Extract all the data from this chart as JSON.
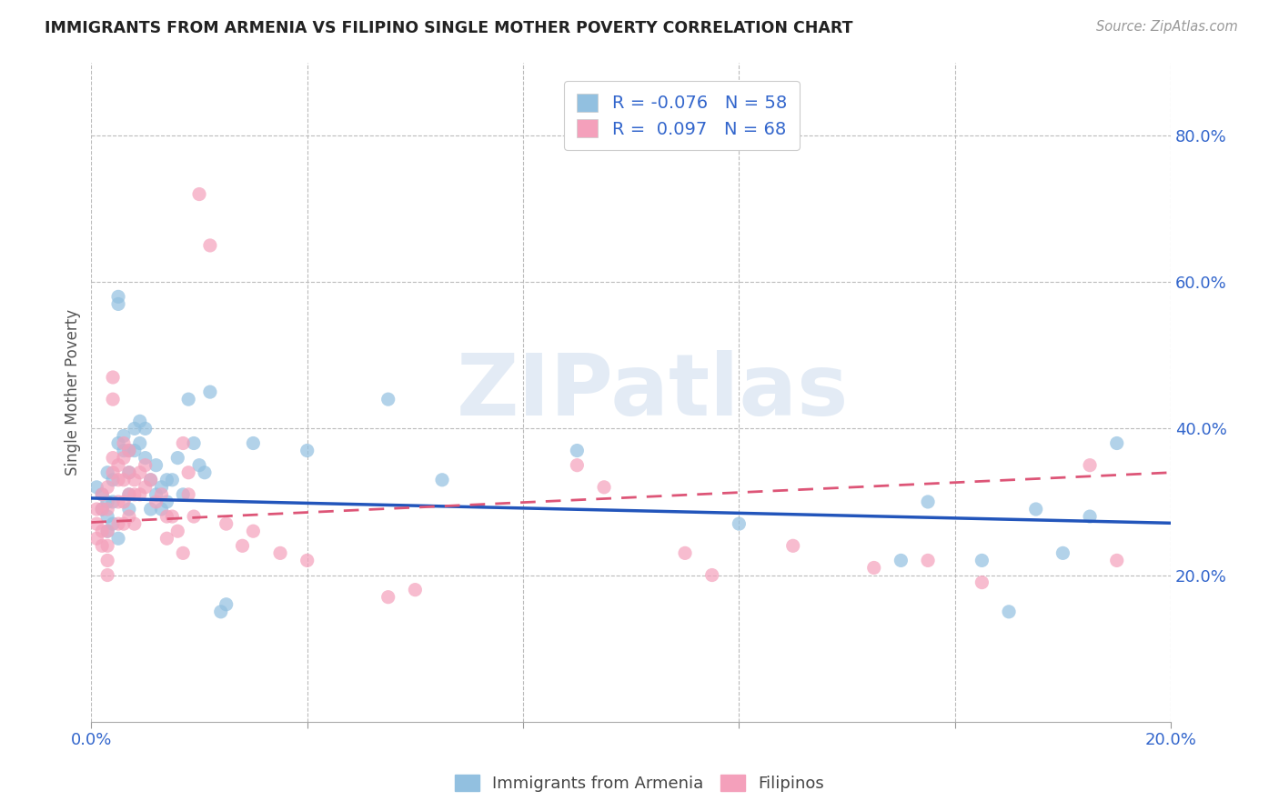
{
  "title": "IMMIGRANTS FROM ARMENIA VS FILIPINO SINGLE MOTHER POVERTY CORRELATION CHART",
  "source": "Source: ZipAtlas.com",
  "ylabel": "Single Mother Poverty",
  "xlim": [
    0.0,
    0.2
  ],
  "ylim": [
    0.0,
    0.9
  ],
  "xtick_positions": [
    0.0,
    0.04,
    0.08,
    0.12,
    0.16,
    0.2
  ],
  "xticklabels": [
    "0.0%",
    "",
    "",
    "",
    "",
    "20.0%"
  ],
  "ytick_positions": [
    0.2,
    0.4,
    0.6,
    0.8
  ],
  "ytick_labels": [
    "20.0%",
    "40.0%",
    "60.0%",
    "80.0%"
  ],
  "color_armenia": "#92C0E0",
  "color_filipino": "#F4A0BB",
  "color_armenia_line": "#2255BB",
  "color_filipino_line": "#DD5577",
  "color_text_blue": "#3366CC",
  "color_grid": "#BBBBBB",
  "background_color": "#FFFFFF",
  "watermark_text": "ZIPatlas",
  "legend_line1": "R = -0.076   N = 58",
  "legend_line2": "R =  0.097   N = 68",
  "armenia_x": [
    0.001,
    0.002,
    0.002,
    0.003,
    0.003,
    0.003,
    0.003,
    0.004,
    0.004,
    0.004,
    0.005,
    0.005,
    0.005,
    0.005,
    0.006,
    0.006,
    0.007,
    0.007,
    0.007,
    0.007,
    0.008,
    0.008,
    0.009,
    0.009,
    0.01,
    0.01,
    0.011,
    0.011,
    0.012,
    0.012,
    0.013,
    0.013,
    0.014,
    0.014,
    0.015,
    0.016,
    0.017,
    0.018,
    0.019,
    0.02,
    0.021,
    0.022,
    0.024,
    0.025,
    0.03,
    0.04,
    0.055,
    0.065,
    0.09,
    0.12,
    0.15,
    0.155,
    0.165,
    0.17,
    0.175,
    0.18,
    0.185,
    0.19
  ],
  "armenia_y": [
    0.32,
    0.29,
    0.31,
    0.34,
    0.3,
    0.28,
    0.26,
    0.33,
    0.3,
    0.27,
    0.58,
    0.57,
    0.38,
    0.25,
    0.39,
    0.37,
    0.37,
    0.34,
    0.31,
    0.29,
    0.4,
    0.37,
    0.41,
    0.38,
    0.4,
    0.36,
    0.33,
    0.29,
    0.35,
    0.31,
    0.32,
    0.29,
    0.33,
    0.3,
    0.33,
    0.36,
    0.31,
    0.44,
    0.38,
    0.35,
    0.34,
    0.45,
    0.15,
    0.16,
    0.38,
    0.37,
    0.44,
    0.33,
    0.37,
    0.27,
    0.22,
    0.3,
    0.22,
    0.15,
    0.29,
    0.23,
    0.28,
    0.38
  ],
  "filipino_x": [
    0.001,
    0.001,
    0.001,
    0.002,
    0.002,
    0.002,
    0.002,
    0.003,
    0.003,
    0.003,
    0.003,
    0.003,
    0.003,
    0.004,
    0.004,
    0.004,
    0.004,
    0.005,
    0.005,
    0.005,
    0.005,
    0.006,
    0.006,
    0.006,
    0.006,
    0.006,
    0.007,
    0.007,
    0.007,
    0.007,
    0.008,
    0.008,
    0.008,
    0.009,
    0.009,
    0.01,
    0.01,
    0.011,
    0.012,
    0.013,
    0.014,
    0.014,
    0.015,
    0.016,
    0.017,
    0.017,
    0.018,
    0.018,
    0.019,
    0.02,
    0.022,
    0.025,
    0.028,
    0.03,
    0.035,
    0.04,
    0.055,
    0.06,
    0.09,
    0.095,
    0.11,
    0.115,
    0.13,
    0.145,
    0.155,
    0.165,
    0.185,
    0.19
  ],
  "filipino_y": [
    0.29,
    0.27,
    0.25,
    0.31,
    0.29,
    0.26,
    0.24,
    0.32,
    0.29,
    0.26,
    0.24,
    0.22,
    0.2,
    0.47,
    0.44,
    0.36,
    0.34,
    0.35,
    0.33,
    0.3,
    0.27,
    0.38,
    0.36,
    0.33,
    0.3,
    0.27,
    0.37,
    0.34,
    0.31,
    0.28,
    0.33,
    0.31,
    0.27,
    0.34,
    0.31,
    0.35,
    0.32,
    0.33,
    0.3,
    0.31,
    0.28,
    0.25,
    0.28,
    0.26,
    0.23,
    0.38,
    0.34,
    0.31,
    0.28,
    0.72,
    0.65,
    0.27,
    0.24,
    0.26,
    0.23,
    0.22,
    0.17,
    0.18,
    0.35,
    0.32,
    0.23,
    0.2,
    0.24,
    0.21,
    0.22,
    0.19,
    0.35,
    0.22
  ],
  "armenia_trend_x": [
    0.0,
    0.2
  ],
  "armenia_trend_y": [
    0.305,
    0.271
  ],
  "filipino_trend_x": [
    0.0,
    0.2
  ],
  "filipino_trend_y": [
    0.272,
    0.34
  ]
}
